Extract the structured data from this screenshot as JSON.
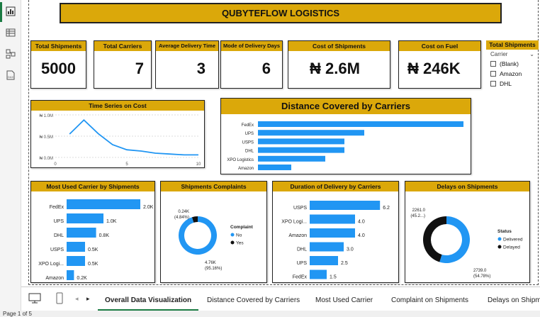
{
  "title": "QUBYTEFLOW LOGISTICS",
  "kpis": [
    {
      "label": "Total Shipments",
      "value": "5000"
    },
    {
      "label": "Total Carriers",
      "value": "7"
    },
    {
      "label": "Average Delivery Time",
      "value": "3"
    },
    {
      "label": "Mode of Delivery Days",
      "value": "6"
    },
    {
      "label": "Cost of Shipments",
      "value": "₦ 2.6M"
    },
    {
      "label": "Cost on Fuel",
      "value": "₦ 246K"
    }
  ],
  "slicer": {
    "title": "Total Shipments",
    "field": "Carrier",
    "options": [
      "(Blank)",
      "Amazon",
      "DHL"
    ]
  },
  "tabs": [
    "Overall Data Visualization",
    "Distance Covered by Carriers",
    "Most Used Carrier",
    "Complaint on Shipments",
    "Delays on Shipme"
  ],
  "status_text": "Page 1 of 5",
  "colors": {
    "accent": "#dba80a",
    "bar": "#2196f3",
    "dark": "#111111",
    "nav_active": "#1b7b43"
  },
  "icons": [
    "report-view-icon",
    "table-view-icon",
    "model-view-icon",
    "dax-query-icon",
    "desktop-layout-icon",
    "phone-layout-icon",
    "chevron-left-icon",
    "chevron-right-icon"
  ],
  "chart_data": [
    {
      "type": "line",
      "title": "Time Series on Cost",
      "x": [
        1,
        2,
        3,
        4,
        5,
        6,
        7,
        8,
        9,
        10
      ],
      "y": [
        550000,
        880000,
        560000,
        300000,
        180000,
        150000,
        100000,
        80000,
        60000,
        60000
      ],
      "xlim": [
        0,
        10
      ],
      "ylim": [
        0,
        1000000
      ],
      "y_ticks": [
        "₦ 0.0M",
        "₦ 0.5M",
        "₦ 1.0M"
      ],
      "x_ticks": [
        "0",
        "5",
        "10"
      ],
      "grid": true
    },
    {
      "type": "bar",
      "orientation": "horizontal",
      "title": "Distance Covered by Carriers",
      "categories": [
        "FedEx",
        "UPS",
        "USPS",
        "DHL",
        "XPO Logistics",
        "Amazon"
      ],
      "values": [
        290,
        150,
        122,
        122,
        95,
        47
      ]
    },
    {
      "type": "bar",
      "orientation": "horizontal",
      "title": "Most Used Carrier by Shipments",
      "categories": [
        "FedEx",
        "UPS",
        "DHL",
        "USPS",
        "XPO Logi...",
        "Amazon"
      ],
      "values": [
        2000,
        1000,
        800,
        500,
        500,
        200
      ],
      "labels": [
        "2.0K",
        "1.0K",
        "0.8K",
        "0.5K",
        "0.5K",
        "0.2K"
      ]
    },
    {
      "type": "pie",
      "donut": true,
      "title": "Shipments Complaints",
      "legend_title": "Complaint",
      "legend_position": "right",
      "categories": [
        "No",
        "Yes"
      ],
      "values": [
        4760,
        240
      ],
      "labels": [
        "4.76K\n(95.16%)",
        "0.24K\n(4.84%)"
      ],
      "colors": [
        "#2196f3",
        "#111111"
      ]
    },
    {
      "type": "bar",
      "orientation": "horizontal",
      "title": "Duration of Delivery by Carriers",
      "categories": [
        "USPS",
        "XPO Logi...",
        "Amazon",
        "DHL",
        "UPS",
        "FedEx"
      ],
      "values": [
        6.2,
        4.0,
        4.0,
        3.0,
        2.5,
        1.5
      ],
      "labels": [
        "6.2",
        "4.0",
        "4.0",
        "3.0",
        "2.5",
        "1.5"
      ]
    },
    {
      "type": "pie",
      "donut": true,
      "title": "Delays on Shipments",
      "legend_title": "Status",
      "legend_position": "right",
      "categories": [
        "Delivered",
        "Delayed"
      ],
      "values": [
        2739,
        2261
      ],
      "labels": [
        "2739.0\n(54.78%)",
        "2261.0\n(45.2...)"
      ],
      "colors": [
        "#2196f3",
        "#111111"
      ]
    }
  ]
}
